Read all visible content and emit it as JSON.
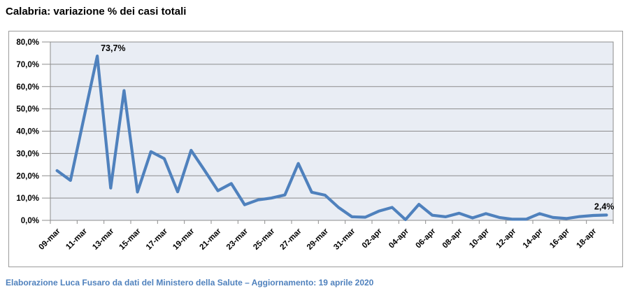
{
  "title": "Calabria: variazione % dei casi totali",
  "footer": "Elaborazione Luca Fusaro da dati del Ministero della Salute – Aggiornamento: 19 aprile 2020",
  "colors": {
    "line": "#4F81BD",
    "plot_bg": "#E9EDF4",
    "grid": "#8C8C8C",
    "axis": "#8C8C8C",
    "frame_border": "#9C9C9C",
    "tick_text": "#000000",
    "footer_text": "#4F81BD"
  },
  "chart_data": {
    "type": "line",
    "title": "Calabria: variazione % dei casi totali",
    "xlabel": "",
    "ylabel": "",
    "ylim": [
      0,
      80
    ],
    "grid": true,
    "legend": "none",
    "x": [
      "09-mar",
      "10-mar",
      "11-mar",
      "12-mar",
      "13-mar",
      "14-mar",
      "15-mar",
      "16-mar",
      "17-mar",
      "18-mar",
      "19-mar",
      "20-mar",
      "21-mar",
      "22-mar",
      "23-mar",
      "24-mar",
      "25-mar",
      "26-mar",
      "27-mar",
      "28-mar",
      "29-mar",
      "30-mar",
      "31-mar",
      "01-apr",
      "02-apr",
      "03-apr",
      "04-apr",
      "05-apr",
      "06-apr",
      "07-apr",
      "08-apr",
      "09-apr",
      "10-apr",
      "11-apr",
      "12-apr",
      "13-apr",
      "14-apr",
      "15-apr",
      "16-apr",
      "17-apr",
      "18-apr",
      "19-apr"
    ],
    "values": [
      22.3,
      17.9,
      45.8,
      73.7,
      14.5,
      58.2,
      12.7,
      30.8,
      27.7,
      12.8,
      31.4,
      22.5,
      13.3,
      16.5,
      7.0,
      9.2,
      10.0,
      11.4,
      25.5,
      12.6,
      11.3,
      5.8,
      1.6,
      1.4,
      4.1,
      5.8,
      0.3,
      7.2,
      2.3,
      1.6,
      3.2,
      1.1,
      3.0,
      1.3,
      0.5,
      0.5,
      3.0,
      1.3,
      0.8,
      1.7,
      2.2,
      2.4
    ],
    "ytick_labels": [
      "0,0%",
      "10,0%",
      "20,0%",
      "30,0%",
      "40,0%",
      "50,0%",
      "60,0%",
      "70,0%",
      "80,0%"
    ],
    "xtick_labels": [
      "09-mar",
      "11-mar",
      "13-mar",
      "15-mar",
      "17-mar",
      "19-mar",
      "21-mar",
      "23-mar",
      "25-mar",
      "27-mar",
      "29-mar",
      "31-mar",
      "02-apr",
      "04-apr",
      "06-apr",
      "08-apr",
      "10-apr",
      "12-apr",
      "14-apr",
      "16-apr",
      "18-apr"
    ],
    "annotations": [
      {
        "index": 3,
        "label": "73,7%",
        "align": "start"
      },
      {
        "index": 41,
        "label": "2,4%",
        "align": "end"
      }
    ]
  }
}
